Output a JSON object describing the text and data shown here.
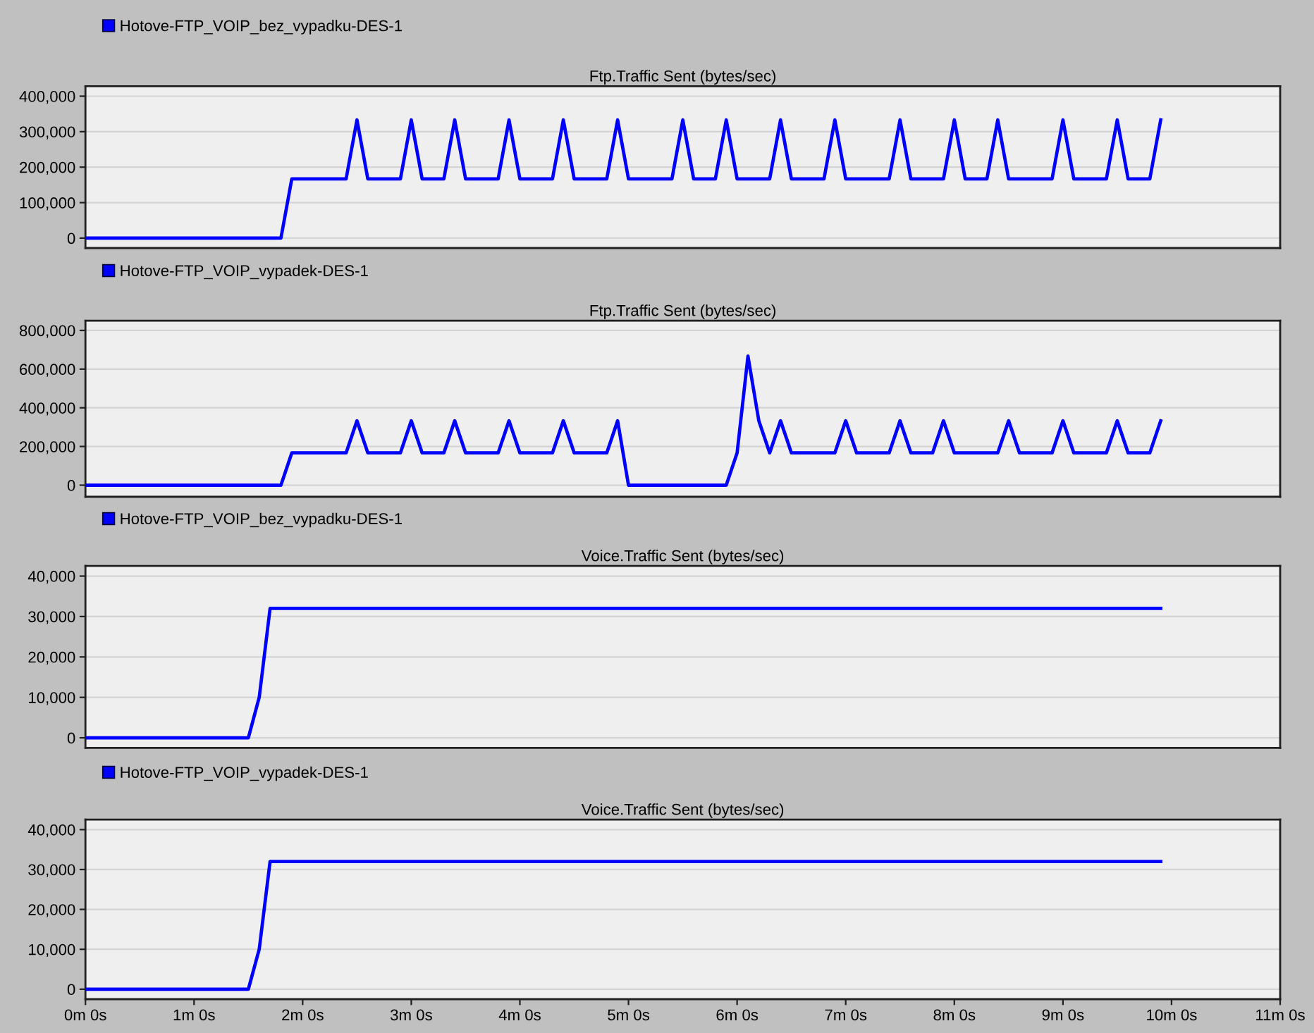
{
  "chart_data": [
    {
      "type": "line",
      "title": "Ftp.Traffic Sent (bytes/sec)",
      "categories": [
        null,
        null,
        null,
        null,
        null,
        null,
        null,
        null,
        null,
        null,
        null,
        null,
        null,
        null,
        null,
        null,
        null,
        null,
        null,
        null,
        null,
        null,
        null,
        null,
        null,
        null,
        null,
        null,
        null,
        null,
        null,
        null,
        null,
        null,
        null,
        null,
        null,
        null,
        null,
        null,
        null,
        null,
        null,
        null,
        null,
        null,
        null,
        null,
        null,
        null,
        null,
        null,
        null,
        null,
        null,
        null,
        null,
        null,
        null,
        null,
        null,
        null,
        null,
        null,
        null,
        null,
        null,
        null,
        null,
        null,
        null,
        null,
        null,
        null,
        null,
        null,
        null,
        null,
        null,
        null,
        null,
        null,
        null,
        null,
        null,
        null,
        null,
        null,
        null,
        null,
        null,
        null,
        null,
        null,
        null,
        null,
        null,
        null,
        null,
        null,
        null,
        null,
        null,
        null,
        null,
        null,
        null,
        null,
        null,
        null,
        null
      ],
      "series": [
        {
          "name": "Hotove-FTP_VOIP_bez_vypadku-DES-1",
          "color": "#0000ff",
          "values": [
            0,
            0,
            0,
            0,
            0,
            0,
            0,
            0,
            0,
            0,
            0,
            0,
            0,
            0,
            0,
            0,
            0,
            0,
            0,
            167000,
            167000,
            167000,
            167000,
            167000,
            167000,
            333000,
            167000,
            167000,
            167000,
            167000,
            333000,
            167000,
            167000,
            167000,
            333000,
            167000,
            167000,
            167000,
            167000,
            333000,
            167000,
            167000,
            167000,
            167000,
            333000,
            167000,
            167000,
            167000,
            167000,
            333000,
            167000,
            167000,
            167000,
            167000,
            167000,
            333000,
            167000,
            167000,
            167000,
            333000,
            167000,
            167000,
            167000,
            167000,
            333000,
            167000,
            167000,
            167000,
            167000,
            333000,
            167000,
            167000,
            167000,
            167000,
            167000,
            333000,
            167000,
            167000,
            167000,
            167000,
            333000,
            167000,
            167000,
            167000,
            333000,
            167000,
            167000,
            167000,
            167000,
            167000,
            333000,
            167000,
            167000,
            167000,
            167000,
            333000,
            167000,
            167000,
            167000,
            333000,
            null,
            null,
            null,
            null,
            null,
            null,
            null,
            null,
            null,
            null,
            null
          ]
        }
      ],
      "ylim": [
        -28000,
        428000
      ],
      "yticks": [
        0,
        {
          "value": 100000,
          "label": "100,000"
        },
        {
          "value": 200000,
          "label": "200,000"
        },
        {
          "value": 300000,
          "label": "300,000"
        },
        {
          "value": 400000,
          "label": "400,000"
        }
      ],
      "grid": "y",
      "legend": "top left",
      "tick_labels": "y"
    },
    {
      "type": "line",
      "title": "Ftp.Traffic Sent (bytes/sec)",
      "categories": [
        null,
        null,
        null,
        null,
        null,
        null,
        null,
        null,
        null,
        null,
        null,
        null,
        null,
        null,
        null,
        null,
        null,
        null,
        null,
        null,
        null,
        null,
        null,
        null,
        null,
        null,
        null,
        null,
        null,
        null,
        null,
        null,
        null,
        null,
        null,
        null,
        null,
        null,
        null,
        null,
        null,
        null,
        null,
        null,
        null,
        null,
        null,
        null,
        null,
        null,
        null,
        null,
        null,
        null,
        null,
        null,
        null,
        null,
        null,
        null,
        null,
        null,
        null,
        null,
        null,
        null,
        null,
        null,
        null,
        null,
        null,
        null,
        null,
        null,
        null,
        null,
        null,
        null,
        null,
        null,
        null,
        null,
        null,
        null,
        null,
        null,
        null,
        null,
        null,
        null,
        null,
        null,
        null,
        null,
        null,
        null,
        null,
        null,
        null,
        null,
        null,
        null,
        null,
        null,
        null,
        null,
        null,
        null,
        null,
        null,
        null
      ],
      "series": [
        {
          "name": "Hotove-FTP_VOIP_vypadek-DES-1",
          "color": "#0000ff",
          "values": [
            0,
            0,
            0,
            0,
            0,
            0,
            0,
            0,
            0,
            0,
            0,
            0,
            0,
            0,
            0,
            0,
            0,
            0,
            0,
            167000,
            167000,
            167000,
            167000,
            167000,
            167000,
            333000,
            167000,
            167000,
            167000,
            167000,
            333000,
            167000,
            167000,
            167000,
            333000,
            167000,
            167000,
            167000,
            167000,
            333000,
            167000,
            167000,
            167000,
            167000,
            333000,
            167000,
            167000,
            167000,
            167000,
            333000,
            0,
            0,
            0,
            0,
            0,
            0,
            0,
            0,
            0,
            0,
            167000,
            667000,
            333000,
            167000,
            333000,
            167000,
            167000,
            167000,
            167000,
            167000,
            333000,
            167000,
            167000,
            167000,
            167000,
            333000,
            167000,
            167000,
            167000,
            333000,
            167000,
            167000,
            167000,
            167000,
            167000,
            333000,
            167000,
            167000,
            167000,
            167000,
            333000,
            167000,
            167000,
            167000,
            167000,
            333000,
            167000,
            167000,
            167000,
            333000,
            null,
            null,
            null,
            null,
            null,
            null,
            null,
            null,
            null,
            null,
            null
          ]
        }
      ],
      "ylim": [
        -60000,
        850000
      ],
      "yticks": [
        0,
        {
          "value": 200000,
          "label": "200,000"
        },
        {
          "value": 400000,
          "label": "400,000"
        },
        {
          "value": 600000,
          "label": "600,000"
        },
        {
          "value": 800000,
          "label": "800,000"
        }
      ],
      "grid": "y",
      "legend": "top left",
      "tick_labels": "y"
    },
    {
      "type": "line",
      "title": "Voice.Traffic Sent (bytes/sec)",
      "categories": [
        null,
        null,
        null,
        null,
        null,
        null,
        null,
        null,
        null,
        null,
        null,
        null,
        null,
        null,
        null,
        null,
        null,
        null,
        null,
        null,
        null,
        null,
        null,
        null,
        null,
        null,
        null,
        null,
        null,
        null,
        null,
        null,
        null,
        null,
        null,
        null,
        null,
        null,
        null,
        null,
        null,
        null,
        null,
        null,
        null,
        null,
        null,
        null,
        null,
        null,
        null,
        null,
        null,
        null,
        null,
        null,
        null,
        null,
        null,
        null,
        null,
        null,
        null,
        null,
        null,
        null,
        null,
        null,
        null,
        null,
        null,
        null,
        null,
        null,
        null,
        null,
        null,
        null,
        null,
        null,
        null,
        null,
        null,
        null,
        null,
        null,
        null,
        null,
        null,
        null,
        null,
        null,
        null,
        null,
        null,
        null,
        null,
        null,
        null,
        null,
        null,
        null,
        null,
        null,
        null,
        null,
        null,
        null,
        null,
        null,
        null
      ],
      "series": [
        {
          "name": "Hotove-FTP_VOIP_bez_vypadku-DES-1",
          "color": "#0000ff",
          "values": [
            0,
            0,
            0,
            0,
            0,
            0,
            0,
            0,
            0,
            0,
            0,
            0,
            0,
            0,
            0,
            0,
            10000,
            32000,
            32000,
            32000,
            32000,
            32000,
            32000,
            32000,
            32000,
            32000,
            32000,
            32000,
            32000,
            32000,
            32000,
            32000,
            32000,
            32000,
            32000,
            32000,
            32000,
            32000,
            32000,
            32000,
            32000,
            32000,
            32000,
            32000,
            32000,
            32000,
            32000,
            32000,
            32000,
            32000,
            32000,
            32000,
            32000,
            32000,
            32000,
            32000,
            32000,
            32000,
            32000,
            32000,
            32000,
            32000,
            32000,
            32000,
            32000,
            32000,
            32000,
            32000,
            32000,
            32000,
            32000,
            32000,
            32000,
            32000,
            32000,
            32000,
            32000,
            32000,
            32000,
            32000,
            32000,
            32000,
            32000,
            32000,
            32000,
            32000,
            32000,
            32000,
            32000,
            32000,
            32000,
            32000,
            32000,
            32000,
            32000,
            32000,
            32000,
            32000,
            32000,
            32000,
            null,
            null,
            null,
            null,
            null,
            null,
            null,
            null,
            null,
            null,
            null
          ]
        }
      ],
      "ylim": [
        -2500,
        42500
      ],
      "yticks": [
        0,
        {
          "value": 10000,
          "label": "10,000"
        },
        {
          "value": 20000,
          "label": "20,000"
        },
        {
          "value": 30000,
          "label": "30,000"
        },
        {
          "value": 40000,
          "label": "40,000"
        }
      ],
      "grid": "y",
      "legend": "top left",
      "tick_labels": "y"
    },
    {
      "type": "line",
      "title": "Voice.Traffic Sent (bytes/sec)",
      "categories": [
        "0m 0s",
        null,
        null,
        null,
        null,
        null,
        null,
        null,
        null,
        null,
        "1m 0s",
        null,
        null,
        null,
        null,
        null,
        null,
        null,
        null,
        null,
        "2m 0s",
        null,
        null,
        null,
        null,
        null,
        null,
        null,
        null,
        null,
        "3m 0s",
        null,
        null,
        null,
        null,
        null,
        null,
        null,
        null,
        null,
        "4m 0s",
        null,
        null,
        null,
        null,
        null,
        null,
        null,
        null,
        null,
        "5m 0s",
        null,
        null,
        null,
        null,
        null,
        null,
        null,
        null,
        null,
        "6m 0s",
        null,
        null,
        null,
        null,
        null,
        null,
        null,
        null,
        null,
        "7m 0s",
        null,
        null,
        null,
        null,
        null,
        null,
        null,
        null,
        null,
        "8m 0s",
        null,
        null,
        null,
        null,
        null,
        null,
        null,
        null,
        null,
        "9m 0s",
        null,
        null,
        null,
        null,
        null,
        null,
        null,
        null,
        null,
        "10m 0s",
        null,
        null,
        null,
        null,
        null,
        null,
        null,
        null,
        null,
        "11m 0s"
      ],
      "series": [
        {
          "name": "Hotove-FTP_VOIP_vypadek-DES-1",
          "color": "#0000ff",
          "values": [
            0,
            0,
            0,
            0,
            0,
            0,
            0,
            0,
            0,
            0,
            0,
            0,
            0,
            0,
            0,
            0,
            10000,
            32000,
            32000,
            32000,
            32000,
            32000,
            32000,
            32000,
            32000,
            32000,
            32000,
            32000,
            32000,
            32000,
            32000,
            32000,
            32000,
            32000,
            32000,
            32000,
            32000,
            32000,
            32000,
            32000,
            32000,
            32000,
            32000,
            32000,
            32000,
            32000,
            32000,
            32000,
            32000,
            32000,
            32000,
            32000,
            32000,
            32000,
            32000,
            32000,
            32000,
            32000,
            32000,
            32000,
            32000,
            32000,
            32000,
            32000,
            32000,
            32000,
            32000,
            32000,
            32000,
            32000,
            32000,
            32000,
            32000,
            32000,
            32000,
            32000,
            32000,
            32000,
            32000,
            32000,
            32000,
            32000,
            32000,
            32000,
            32000,
            32000,
            32000,
            32000,
            32000,
            32000,
            32000,
            32000,
            32000,
            32000,
            32000,
            32000,
            32000,
            32000,
            32000,
            32000,
            null,
            null,
            null,
            null,
            null,
            null,
            null,
            null,
            null,
            null,
            null
          ]
        }
      ],
      "ylim": [
        -2500,
        42500
      ],
      "yticks": [
        0,
        {
          "value": 10000,
          "label": "10,000"
        },
        {
          "value": 20000,
          "label": "20,000"
        },
        {
          "value": 30000,
          "label": "30,000"
        },
        {
          "value": 40000,
          "label": "40,000"
        }
      ],
      "grid": "y",
      "legend": "top left"
    }
  ]
}
